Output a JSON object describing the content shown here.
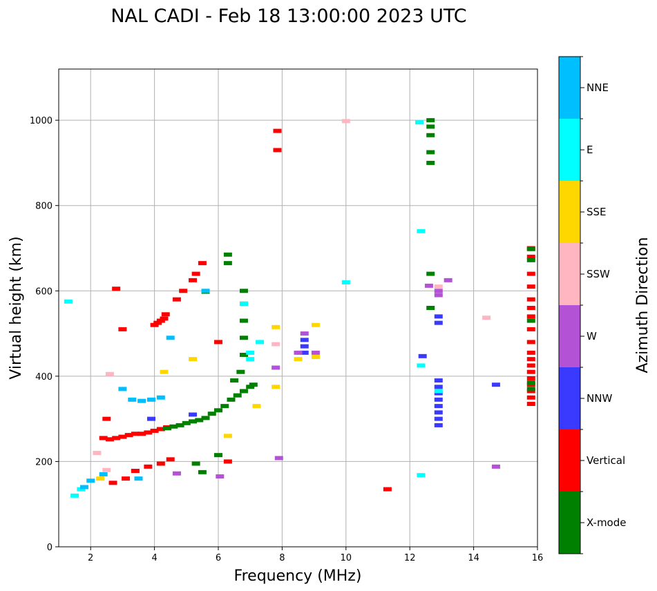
{
  "chart_data": {
    "type": "scatter",
    "title": "NAL CADI - Feb 18 13:00:00 2023 UTC",
    "xlabel": "Frequency (MHz)",
    "ylabel": "Virtual height (km)",
    "xlim": [
      1,
      16
    ],
    "ylim": [
      0,
      1120
    ],
    "xticks": [
      2,
      4,
      6,
      8,
      10,
      12,
      14,
      16
    ],
    "yticks": [
      0,
      200,
      400,
      600,
      800,
      1000
    ],
    "grid": true,
    "colorbar": {
      "label": "Azimuth Direction",
      "categories": [
        {
          "name": "X-mode",
          "color": "#008000"
        },
        {
          "name": "Vertical",
          "color": "#ff0000"
        },
        {
          "name": "NNW",
          "color": "#3a3aff"
        },
        {
          "name": "W",
          "color": "#b452d6"
        },
        {
          "name": "SSW",
          "color": "#ffb6c1"
        },
        {
          "name": "SSE",
          "color": "#ffd700"
        },
        {
          "name": "E",
          "color": "#00ffff"
        },
        {
          "name": "NNE",
          "color": "#00bfff"
        }
      ]
    },
    "series": [
      {
        "name": "Vertical",
        "points": [
          [
            2.4,
            255
          ],
          [
            2.6,
            252
          ],
          [
            2.8,
            255
          ],
          [
            3.0,
            258
          ],
          [
            3.2,
            262
          ],
          [
            3.4,
            265
          ],
          [
            3.6,
            265
          ],
          [
            3.8,
            268
          ],
          [
            4.0,
            272
          ],
          [
            4.2,
            276
          ],
          [
            4.4,
            280
          ],
          [
            2.7,
            150
          ],
          [
            3.1,
            160
          ],
          [
            3.4,
            178
          ],
          [
            3.8,
            188
          ],
          [
            4.2,
            195
          ],
          [
            4.5,
            205
          ],
          [
            4.0,
            520
          ],
          [
            4.1,
            525
          ],
          [
            4.2,
            530
          ],
          [
            4.3,
            535
          ],
          [
            4.35,
            545
          ],
          [
            4.7,
            580
          ],
          [
            4.9,
            600
          ],
          [
            5.2,
            625
          ],
          [
            5.3,
            640
          ],
          [
            5.5,
            665
          ],
          [
            3.0,
            510
          ],
          [
            2.5,
            300
          ],
          [
            2.8,
            605
          ],
          [
            3.4,
            178
          ],
          [
            6.0,
            480
          ],
          [
            6.3,
            200
          ],
          [
            7.85,
            930
          ],
          [
            7.85,
            975
          ],
          [
            11.3,
            135
          ],
          [
            15.8,
            335
          ],
          [
            15.8,
            350
          ],
          [
            15.8,
            365
          ],
          [
            15.8,
            380
          ],
          [
            15.8,
            395
          ],
          [
            15.8,
            410
          ],
          [
            15.8,
            425
          ],
          [
            15.8,
            440
          ],
          [
            15.8,
            455
          ],
          [
            15.8,
            480
          ],
          [
            15.8,
            510
          ],
          [
            15.8,
            540
          ],
          [
            15.8,
            560
          ],
          [
            15.8,
            580
          ],
          [
            15.8,
            610
          ],
          [
            15.8,
            640
          ],
          [
            15.8,
            680
          ],
          [
            15.8,
            700
          ]
        ]
      },
      {
        "name": "X-mode",
        "points": [
          [
            4.4,
            278
          ],
          [
            4.6,
            282
          ],
          [
            4.8,
            285
          ],
          [
            5.0,
            290
          ],
          [
            5.2,
            294
          ],
          [
            5.4,
            297
          ],
          [
            5.6,
            302
          ],
          [
            5.8,
            312
          ],
          [
            6.0,
            320
          ],
          [
            6.2,
            330
          ],
          [
            6.4,
            345
          ],
          [
            6.6,
            355
          ],
          [
            6.8,
            365
          ],
          [
            7.0,
            375
          ],
          [
            7.1,
            380
          ],
          [
            6.5,
            390
          ],
          [
            6.7,
            410
          ],
          [
            6.8,
            450
          ],
          [
            6.8,
            490
          ],
          [
            6.8,
            530
          ],
          [
            6.8,
            570
          ],
          [
            6.8,
            600
          ],
          [
            6.3,
            665
          ],
          [
            6.3,
            685
          ],
          [
            5.6,
            598
          ],
          [
            5.3,
            195
          ],
          [
            5.5,
            175
          ],
          [
            6.0,
            215
          ],
          [
            12.65,
            900
          ],
          [
            12.65,
            925
          ],
          [
            12.65,
            965
          ],
          [
            12.65,
            985
          ],
          [
            12.65,
            1000
          ],
          [
            12.65,
            640
          ],
          [
            12.65,
            560
          ],
          [
            15.8,
            370
          ],
          [
            15.8,
            385
          ],
          [
            15.8,
            530
          ],
          [
            15.8,
            672
          ],
          [
            15.8,
            698
          ]
        ]
      },
      {
        "name": "NNW",
        "points": [
          [
            12.9,
            285
          ],
          [
            12.9,
            300
          ],
          [
            12.9,
            315
          ],
          [
            12.9,
            330
          ],
          [
            12.9,
            345
          ],
          [
            12.9,
            360
          ],
          [
            12.9,
            375
          ],
          [
            12.9,
            390
          ],
          [
            12.9,
            525
          ],
          [
            12.9,
            540
          ],
          [
            8.7,
            455
          ],
          [
            8.7,
            470
          ],
          [
            8.7,
            485
          ],
          [
            12.4,
            447
          ],
          [
            14.7,
            380
          ],
          [
            5.2,
            310
          ],
          [
            3.9,
            300
          ]
        ]
      },
      {
        "name": "W",
        "points": [
          [
            8.5,
            455
          ],
          [
            8.7,
            500
          ],
          [
            9.05,
            455
          ],
          [
            7.8,
            420
          ],
          [
            12.9,
            590
          ],
          [
            12.9,
            600
          ],
          [
            13.2,
            625
          ],
          [
            12.6,
            612
          ],
          [
            14.7,
            188
          ],
          [
            7.9,
            208
          ],
          [
            6.05,
            165
          ],
          [
            4.7,
            172
          ]
        ]
      },
      {
        "name": "SSW",
        "points": [
          [
            2.2,
            220
          ],
          [
            2.5,
            180
          ],
          [
            2.6,
            405
          ],
          [
            7.8,
            475
          ],
          [
            14.4,
            537
          ],
          [
            10,
            998
          ],
          [
            12.9,
            610
          ]
        ]
      },
      {
        "name": "SSE",
        "points": [
          [
            7.2,
            330
          ],
          [
            7.8,
            375
          ],
          [
            7.8,
            515
          ],
          [
            8.5,
            440
          ],
          [
            9.05,
            445
          ],
          [
            9.05,
            520
          ],
          [
            6.3,
            260
          ],
          [
            5.2,
            440
          ],
          [
            4.3,
            410
          ],
          [
            2.3,
            160
          ]
        ]
      },
      {
        "name": "E",
        "points": [
          [
            1.5,
            120
          ],
          [
            1.7,
            135
          ],
          [
            7.0,
            440
          ],
          [
            7.0,
            455
          ],
          [
            7.3,
            480
          ],
          [
            12.35,
            740
          ],
          [
            12.35,
            425
          ],
          [
            12.35,
            168
          ],
          [
            12.3,
            995
          ],
          [
            12.9,
            365
          ],
          [
            10,
            620
          ],
          [
            6.8,
            570
          ],
          [
            1.3,
            575
          ]
        ]
      },
      {
        "name": "NNE",
        "points": [
          [
            1.8,
            140
          ],
          [
            2.0,
            155
          ],
          [
            2.4,
            170
          ],
          [
            3.0,
            370
          ],
          [
            3.3,
            345
          ],
          [
            3.6,
            342
          ],
          [
            3.9,
            345
          ],
          [
            4.2,
            350
          ],
          [
            5.6,
            600
          ],
          [
            4.5,
            490
          ],
          [
            3.5,
            160
          ]
        ]
      }
    ]
  }
}
